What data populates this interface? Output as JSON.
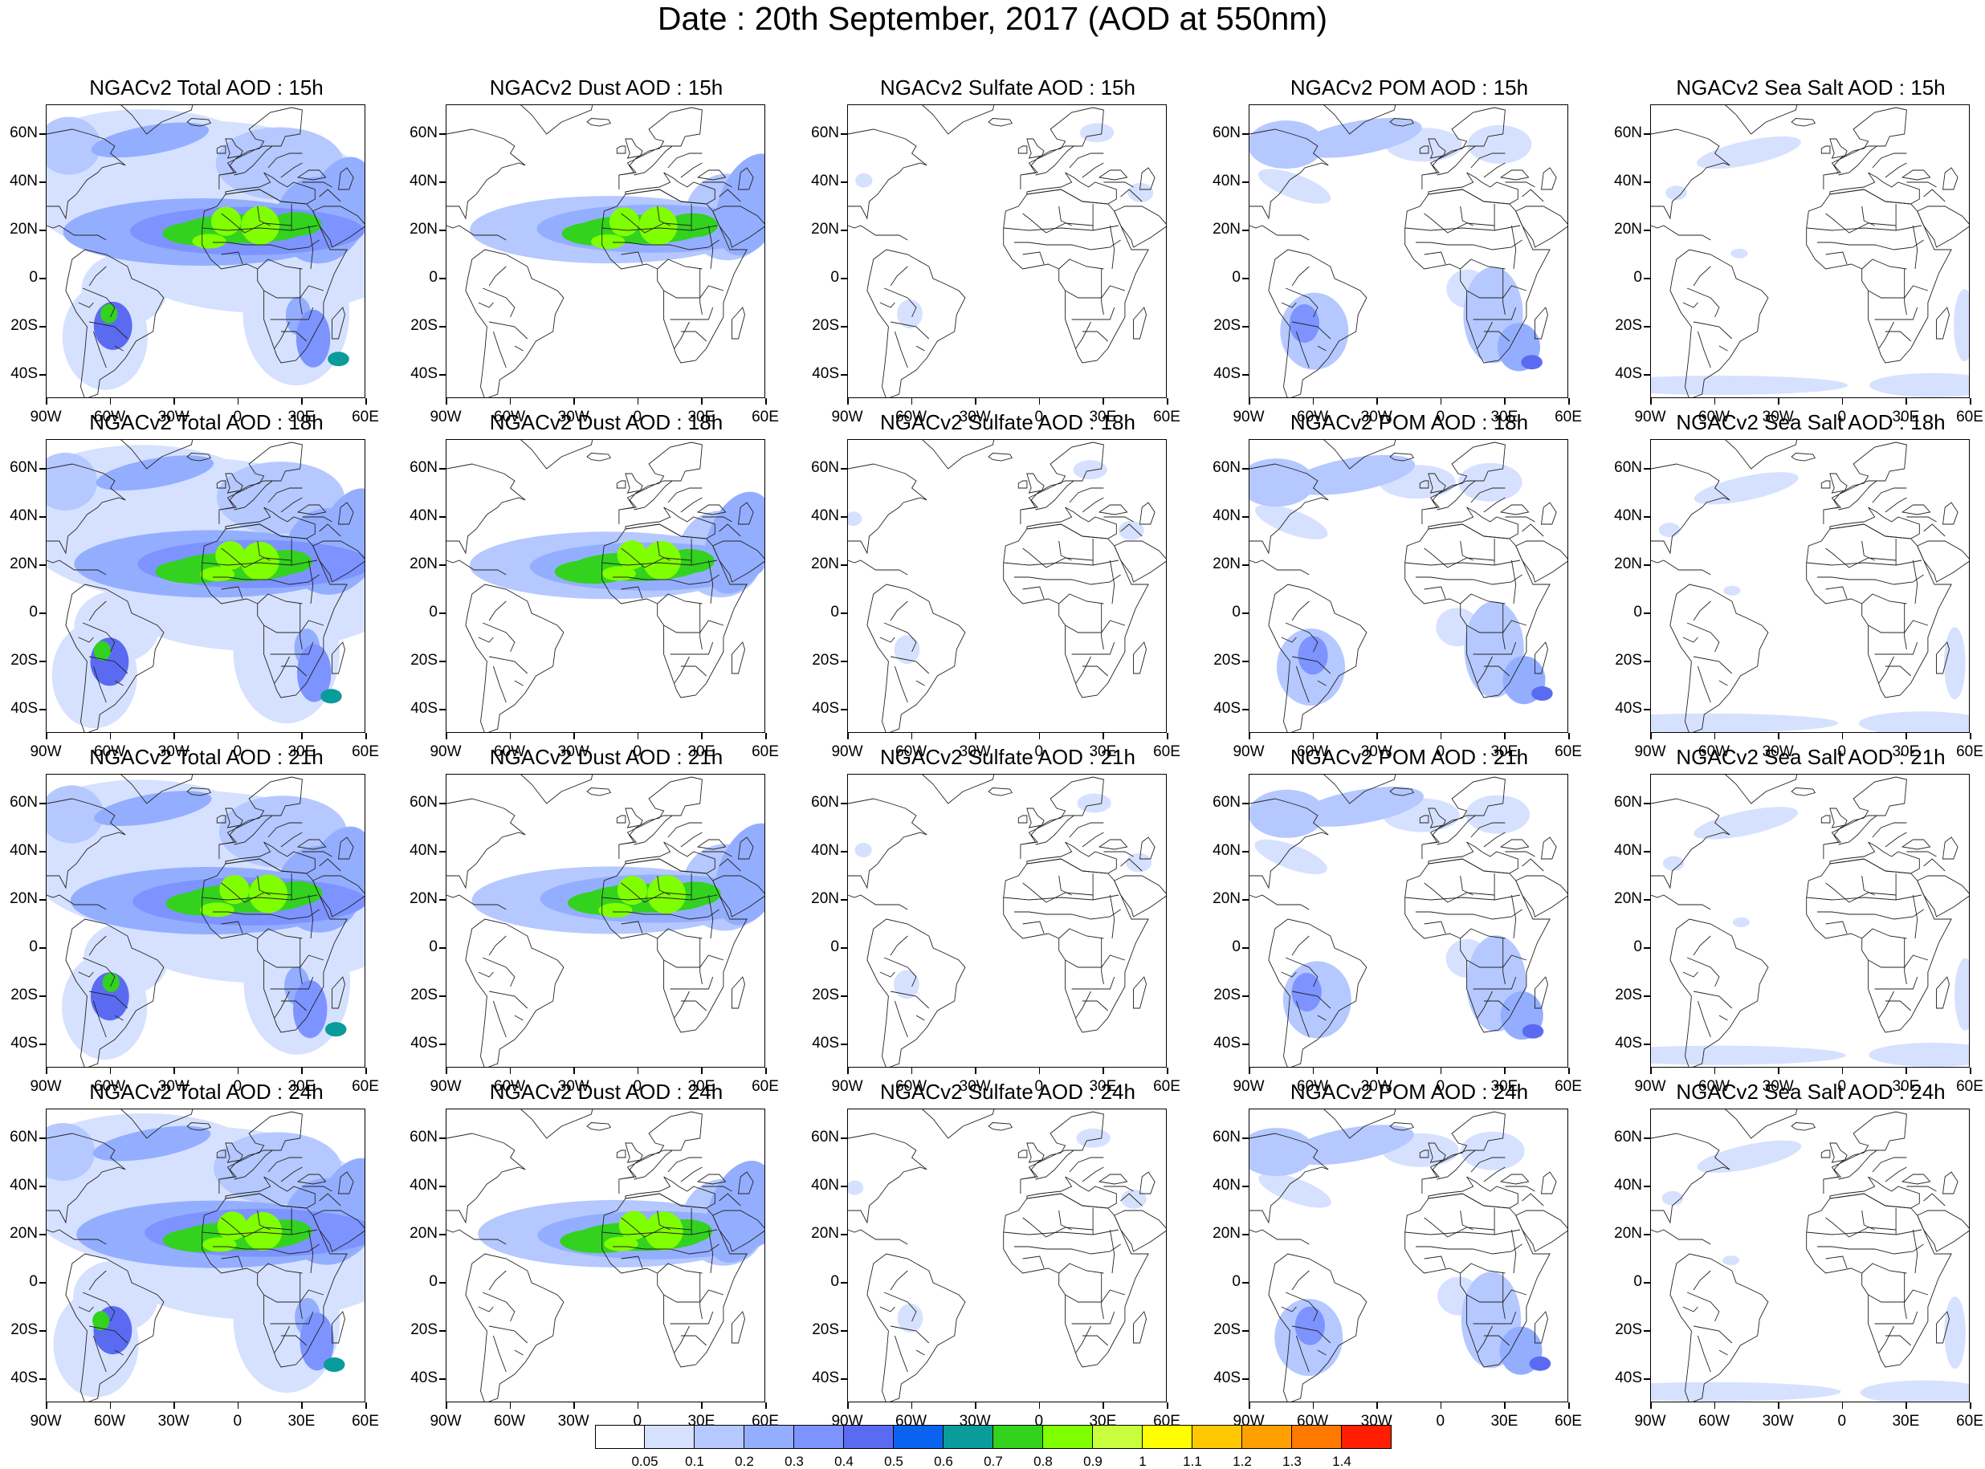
{
  "title": "Date : 20th September, 2017 (AOD at 550nm)",
  "lat_labels": [
    "60N",
    "40N",
    "20N",
    "0",
    "20S",
    "40S"
  ],
  "lon_labels": [
    "90W",
    "60W",
    "30W",
    "0",
    "30E",
    "60E"
  ],
  "domain": {
    "lon_min": -90,
    "lon_max": 60,
    "lat_min": -50,
    "lat_max": 72
  },
  "panels": [
    {
      "title": "NGACv2 Total AOD : 15h",
      "field": "total",
      "hour": "15h"
    },
    {
      "title": "NGACv2 Dust AOD : 15h",
      "field": "dust",
      "hour": "15h"
    },
    {
      "title": "NGACv2 Sulfate AOD : 15h",
      "field": "sulfate",
      "hour": "15h"
    },
    {
      "title": "NGACv2 POM AOD : 15h",
      "field": "pom",
      "hour": "15h"
    },
    {
      "title": "NGACv2 Sea Salt AOD : 15h",
      "field": "seasalt",
      "hour": "15h"
    },
    {
      "title": "NGACv2 Total AOD : 18h",
      "field": "total",
      "hour": "18h"
    },
    {
      "title": "NGACv2 Dust AOD : 18h",
      "field": "dust",
      "hour": "18h"
    },
    {
      "title": "NGACv2 Sulfate AOD : 18h",
      "field": "sulfate",
      "hour": "18h"
    },
    {
      "title": "NGACv2 POM AOD : 18h",
      "field": "pom",
      "hour": "18h"
    },
    {
      "title": "NGACv2 Sea Salt AOD : 18h",
      "field": "seasalt",
      "hour": "18h"
    },
    {
      "title": "NGACv2 Total AOD : 21h",
      "field": "total",
      "hour": "21h"
    },
    {
      "title": "NGACv2 Dust AOD : 21h",
      "field": "dust",
      "hour": "21h"
    },
    {
      "title": "NGACv2 Sulfate AOD : 21h",
      "field": "sulfate",
      "hour": "21h"
    },
    {
      "title": "NGACv2 POM AOD : 21h",
      "field": "pom",
      "hour": "21h"
    },
    {
      "title": "NGACv2 Sea Salt AOD : 21h",
      "field": "seasalt",
      "hour": "21h"
    },
    {
      "title": "NGACv2 Total AOD : 24h",
      "field": "total",
      "hour": "24h"
    },
    {
      "title": "NGACv2 Dust AOD : 24h",
      "field": "dust",
      "hour": "24h"
    },
    {
      "title": "NGACv2 Sulfate AOD : 24h",
      "field": "sulfate",
      "hour": "24h"
    },
    {
      "title": "NGACv2 POM AOD : 24h",
      "field": "pom",
      "hour": "24h"
    },
    {
      "title": "NGACv2 Sea Salt  AOD : 24h",
      "field": "seasalt",
      "hour": "24h"
    }
  ],
  "colorbar": {
    "labels": [
      "0.05",
      "0.1",
      "0.2",
      "0.3",
      "0.4",
      "0.5",
      "0.6",
      "0.7",
      "0.8",
      "0.9",
      "1",
      "1.1",
      "1.2",
      "1.3",
      "1.4"
    ],
    "colors": [
      "#ffffff",
      "#d6e1ff",
      "#b5c8ff",
      "#94aeff",
      "#7d93ff",
      "#5a6bf2",
      "#0a63f0",
      "#0a9b9b",
      "#32d21e",
      "#80ff00",
      "#c8ff3c",
      "#ffff00",
      "#ffc800",
      "#ffa000",
      "#ff7800",
      "#ff1e00"
    ]
  }
}
